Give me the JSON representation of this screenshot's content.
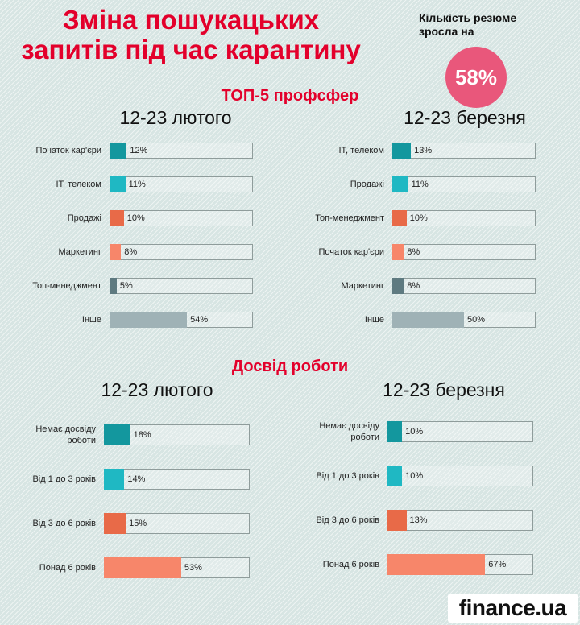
{
  "header": {
    "title_line1": "Зміна пошукацьких",
    "title_line2": "запитів під час карантину",
    "note_line1": "Кількість резюме",
    "note_line2": "зросла на",
    "badge": "58%"
  },
  "sections": {
    "top5_title": "ТОП-5 профсфер",
    "experience_title": "Досвід роботи"
  },
  "colors": {
    "teal_dark": "#13979e",
    "teal_light": "#1fb8c3",
    "orange": "#e86a48",
    "salmon": "#f7866a",
    "slate": "#5e7a80",
    "gray": "#9fb2b6",
    "title_red": "#e3002b",
    "badge_pink": "#e9577b"
  },
  "logo": "finance.ua",
  "chart_data": [
    {
      "type": "bar",
      "title": "12-23 лютого",
      "categories": [
        "Початок кар'єри",
        "IT, телеком",
        "Продажі",
        "Маркетинг",
        "Топ-менеджмент",
        "Інше"
      ],
      "values": [
        12,
        11,
        10,
        8,
        5,
        54
      ],
      "value_labels": [
        "12%",
        "11%",
        "10%",
        "8%",
        "5%",
        "54%"
      ],
      "colors": [
        "#13979e",
        "#1fb8c3",
        "#e86a48",
        "#f7866a",
        "#5e7a80",
        "#9fb2b6"
      ],
      "ylim": [
        0,
        100
      ]
    },
    {
      "type": "bar",
      "title": "12-23 березня",
      "categories": [
        "IT, телеком",
        "Продажі",
        "Топ-менеджмент",
        "Початок кар'єри",
        "Маркетинг",
        "Інше"
      ],
      "values": [
        13,
        11,
        10,
        8,
        8,
        50
      ],
      "value_labels": [
        "13%",
        "11%",
        "10%",
        "8%",
        "8%",
        "50%"
      ],
      "colors": [
        "#13979e",
        "#1fb8c3",
        "#e86a48",
        "#f7866a",
        "#5e7a80",
        "#9fb2b6"
      ],
      "ylim": [
        0,
        100
      ]
    },
    {
      "type": "bar",
      "title": "12-23 лютого",
      "categories": [
        "Немає досвіду роботи",
        "Від 1 до 3 років",
        "Від 3 до 6 років",
        "Понад 6 років"
      ],
      "values": [
        18,
        14,
        15,
        53
      ],
      "value_labels": [
        "18%",
        "14%",
        "15%",
        "53%"
      ],
      "colors": [
        "#13979e",
        "#1fb8c3",
        "#e86a48",
        "#f7866a"
      ],
      "ylim": [
        0,
        100
      ]
    },
    {
      "type": "bar",
      "title": "12-23 березня",
      "categories": [
        "Немає досвіду роботи",
        "Від 1 до 3 років",
        "Від 3 до 6 років",
        "Понад 6 років"
      ],
      "values": [
        10,
        10,
        13,
        67
      ],
      "value_labels": [
        "10%",
        "10%",
        "13%",
        "67%"
      ],
      "colors": [
        "#13979e",
        "#1fb8c3",
        "#e86a48",
        "#f7866a"
      ],
      "ylim": [
        0,
        100
      ]
    }
  ]
}
